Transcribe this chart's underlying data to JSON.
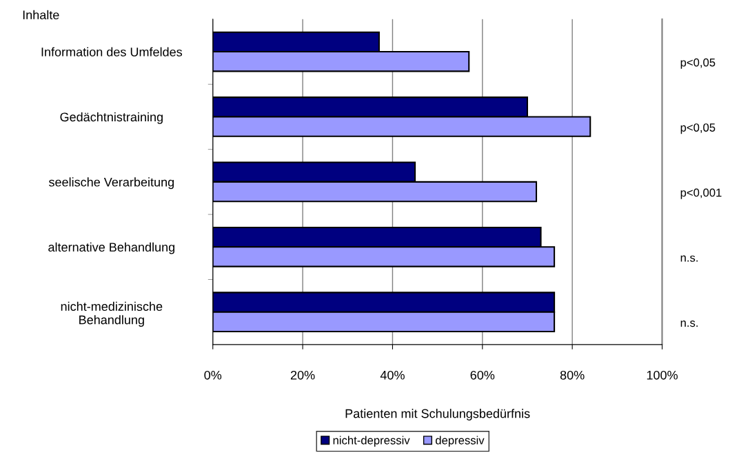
{
  "chart_data": {
    "type": "bar",
    "orientation": "horizontal",
    "ylabel": "Inhalte",
    "xlabel": "Patienten mit Schulungsbedürfnis",
    "categories": [
      "Information des Umfeldes",
      "Gedächtnistraining",
      "seelische Verarbeitung",
      "alternative Behandlung",
      "nicht-medizinische\nBehandlung"
    ],
    "series": [
      {
        "name": "nicht-depressiv",
        "color": "#000080",
        "values": [
          37,
          70,
          45,
          73,
          76
        ]
      },
      {
        "name": "depressiv",
        "color": "#9999ff",
        "values": [
          57,
          84,
          72,
          76,
          76
        ]
      }
    ],
    "xlim": [
      0,
      100
    ],
    "xticks": [
      {
        "value": 0,
        "label": "0%"
      },
      {
        "value": 20,
        "label": "20%"
      },
      {
        "value": 40,
        "label": "40%"
      },
      {
        "value": 60,
        "label": "60%"
      },
      {
        "value": 80,
        "label": "80%"
      },
      {
        "value": 100,
        "label": "100%"
      }
    ],
    "grid": "x",
    "legend": "bottom",
    "annotations": [
      "p<0,05",
      "p<0,05",
      "p<0,001",
      "n.s.",
      "n.s."
    ]
  }
}
